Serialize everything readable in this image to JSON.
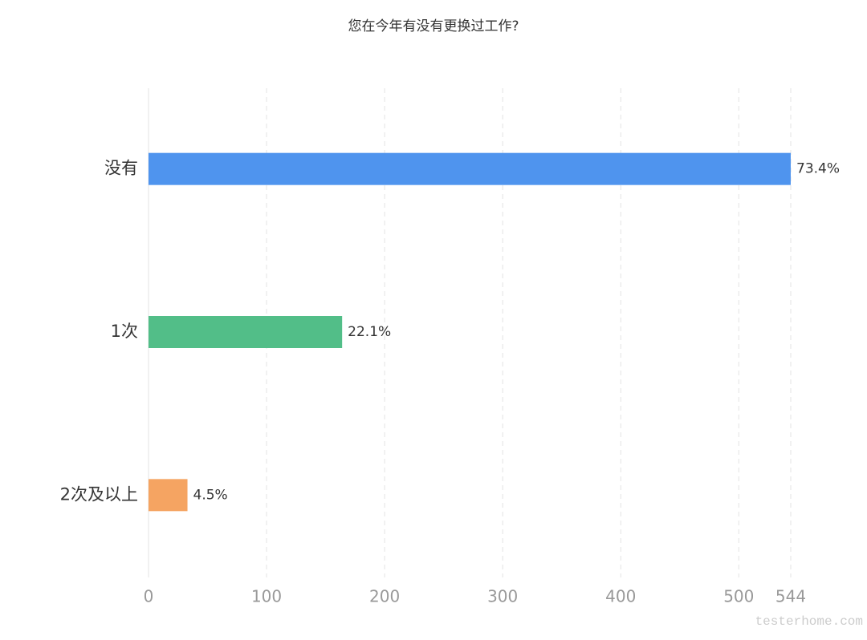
{
  "chart_data": {
    "type": "hbar",
    "title": "您在今年有没有更换过工作?",
    "categories": [
      "没有",
      "1次",
      "2次及以上"
    ],
    "values": [
      544,
      164,
      33
    ],
    "data_labels": [
      "73.4%",
      "22.1%",
      "4.5%"
    ],
    "colors": [
      "#4f94ee",
      "#52be88",
      "#f5a462"
    ],
    "xlim": [
      0,
      544
    ],
    "xticks": [
      0,
      100,
      200,
      300,
      400,
      500,
      544
    ],
    "grid": true
  },
  "watermark": "testerhome.com"
}
